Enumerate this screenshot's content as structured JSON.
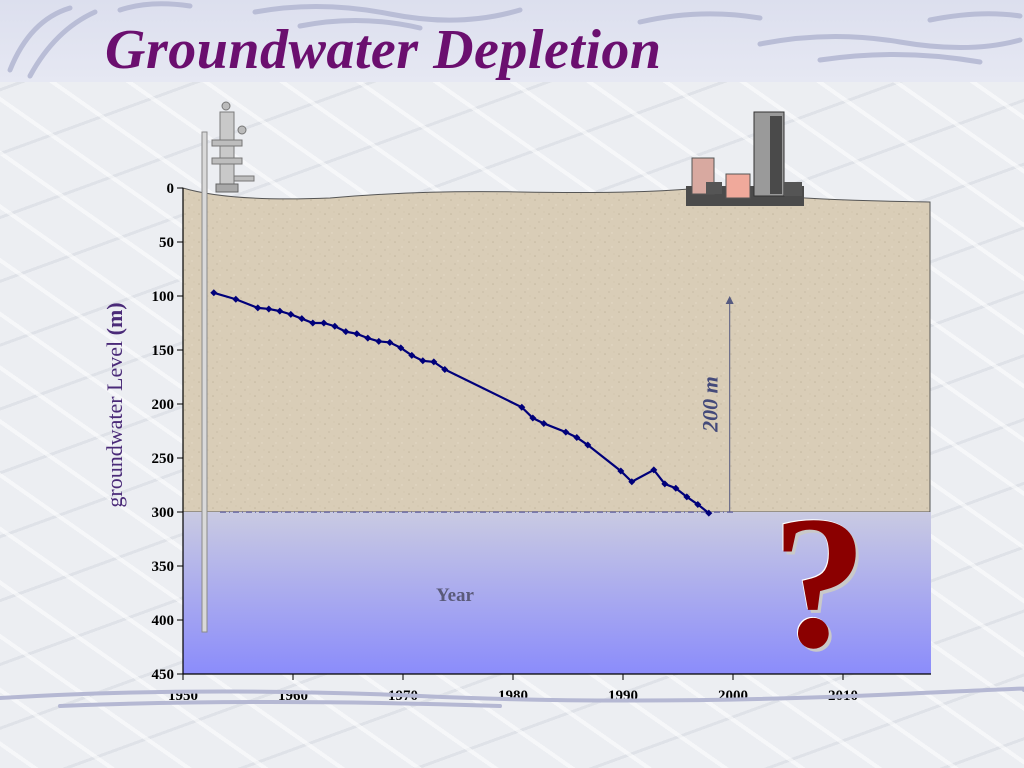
{
  "title": "Groundwater Depletion",
  "colors": {
    "title": "#6b0f6f",
    "series_line": "#00007a",
    "soil": "#d8ccb6",
    "water_top": "#c7c8e2",
    "water_bottom": "#8d8ef8",
    "question_mark": "#8b0000"
  },
  "icons": {
    "well": "wellhead-icon",
    "city": "city-skyline-icon",
    "question": "question-mark-icon"
  },
  "question_mark": "?",
  "annotation": {
    "label": "200  m",
    "from": 100,
    "to": 300
  },
  "inner_xlabel": "Year",
  "chart_data": {
    "type": "line",
    "title": "",
    "xlabel": "",
    "ylabel_main": "groundwater Level ",
    "ylabel_unit": "(m)",
    "xlim": [
      1950,
      2018
    ],
    "ylim": [
      0,
      450
    ],
    "y_inverted": true,
    "xticks": [
      1950,
      1960,
      1970,
      1980,
      1990,
      2000,
      2010
    ],
    "yticks": [
      0,
      50,
      100,
      150,
      200,
      250,
      300,
      350,
      400,
      450
    ],
    "water_table_level": 300,
    "grid": false,
    "series": [
      {
        "x": [
          1952.8,
          1954.8,
          1956.8,
          1957.8,
          1958.8,
          1959.8,
          1960.8,
          1961.8,
          1962.8,
          1963.8,
          1964.8,
          1965.8,
          1966.8,
          1967.8,
          1968.8,
          1969.8,
          1970.8,
          1971.8,
          1972.8,
          1973.8,
          1980.8,
          1981.8,
          1982.8,
          1984.8,
          1985.8,
          1986.8,
          1989.8,
          1990.8,
          1992.8,
          1993.8,
          1994.8,
          1995.8,
          1996.8,
          1997.8
        ],
        "y": [
          97,
          103,
          111,
          112,
          114,
          117,
          121,
          125,
          125,
          128,
          133,
          135,
          139,
          142,
          143,
          148,
          155,
          160,
          161,
          168,
          203,
          213,
          218,
          226,
          231,
          238,
          262,
          272,
          261,
          274,
          278,
          286,
          293,
          301
        ]
      }
    ]
  }
}
